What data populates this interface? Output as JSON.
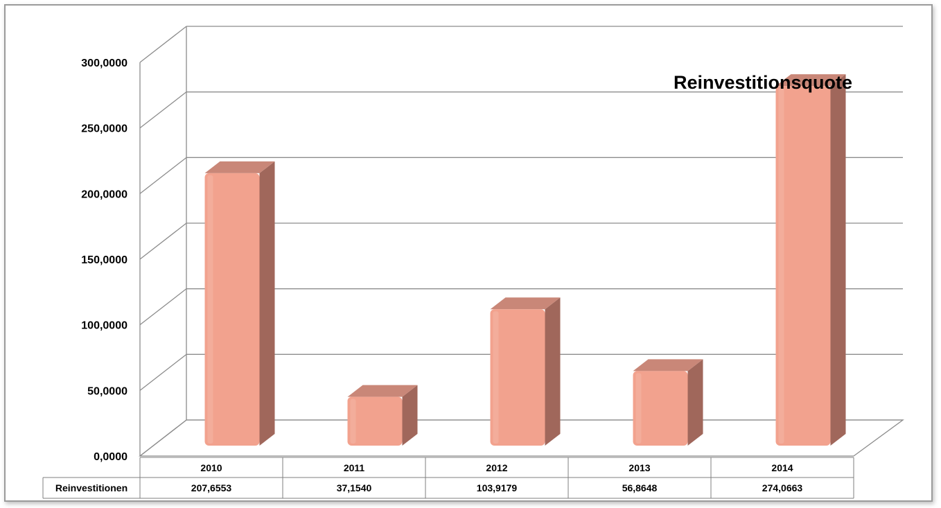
{
  "chart_data": {
    "type": "bar",
    "title": "Reinvestitionsquote",
    "categories": [
      "2010",
      "2011",
      "2012",
      "2013",
      "2014"
    ],
    "series": [
      {
        "name": "Reinvestitionen",
        "values": [
          207.6553,
          37.154,
          103.9179,
          56.8648,
          274.0663
        ],
        "labels": [
          "207,6553",
          "37,1540",
          "103,9179",
          "56,8648",
          "274,0663"
        ]
      }
    ],
    "yticks": [
      "0,0000",
      "50,0000",
      "100,0000",
      "150,0000",
      "200,0000",
      "250,0000",
      "300,0000"
    ],
    "ylim": [
      0,
      300
    ],
    "grid": true,
    "data_table": true,
    "colors": {
      "bar_front": "#f2a28e",
      "bar_side": "#a0675b",
      "bar_top": "#c98778",
      "grid": "#8c8c8c"
    }
  }
}
